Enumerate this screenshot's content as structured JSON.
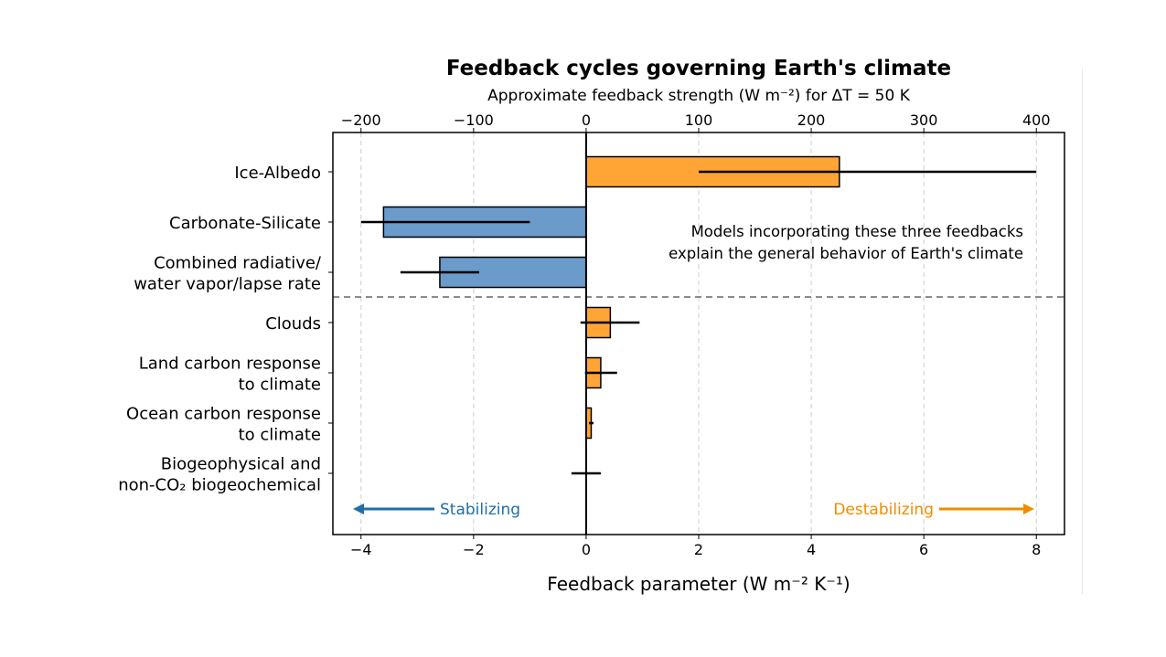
{
  "chart_data": {
    "type": "bar",
    "orientation": "horizontal",
    "title": "Feedback cycles governing Earth's climate",
    "top_axis_label": "Approximate feedback strength (W m⁻²) for ΔT = 50 K",
    "top_ticks": [
      -200,
      -100,
      0,
      100,
      200,
      300,
      400
    ],
    "top_tick_labels": [
      "−200",
      "−100",
      "0",
      "100",
      "200",
      "300",
      "400"
    ],
    "xlabel": "Feedback parameter (W m⁻² K⁻¹)",
    "xticks": [
      -4,
      -2,
      0,
      2,
      4,
      6,
      8
    ],
    "xtick_labels": [
      "−4",
      "−2",
      "0",
      "2",
      "4",
      "6",
      "8"
    ],
    "xlim": [
      -4.5,
      8.5
    ],
    "grid": "vertical dashed",
    "categories": [
      "Ice-Albedo",
      "Carbonate-Silicate",
      "Combined radiative/\nwater vapor/lapse rate",
      "Clouds",
      "Land carbon response\nto climate",
      "Ocean carbon response\nto climate",
      "Biogeophysical and\nnon-CO₂ biogeochemical"
    ],
    "values": [
      4.5,
      -3.6,
      -2.6,
      0.43,
      0.26,
      0.09,
      0.0
    ],
    "error_low": [
      2.0,
      -4.0,
      -3.3,
      -0.1,
      -0.02,
      0.05,
      -0.26
    ],
    "error_high": [
      8.0,
      -1.0,
      -1.9,
      0.95,
      0.55,
      0.13,
      0.26
    ],
    "annotation": "Models incorporating these three feedbacks\nexplain the general behavior of Earth's climate",
    "stabilizing_label": "Stabilizing",
    "destabilizing_label": "Destabilizing",
    "colors": {
      "positive": "#ffa536",
      "negative": "#6a9bcb",
      "stabilizing": "#1f6fa8",
      "destabilizing": "#f08c00"
    }
  }
}
